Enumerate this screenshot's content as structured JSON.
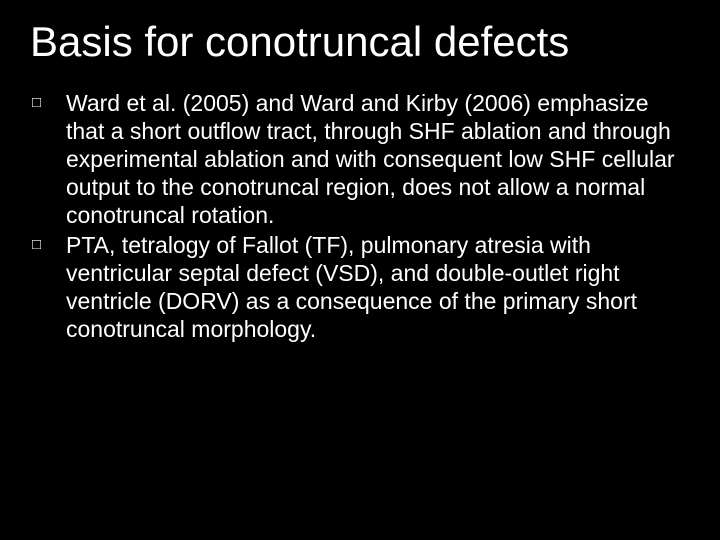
{
  "slide": {
    "title": "Basis for conotruncal defects",
    "bullets": [
      {
        "marker": "□",
        "text": "Ward et al. (2005) and Ward and Kirby (2006) emphasize that  a short outflow tract,  through SHF ablation and  through experimental ablation and with consequent low SHF cellular output to the conotruncal region, does not allow a normal conotruncal rotation."
      },
      {
        "marker": "□",
        "text": " PTA, tetralogy of Fallot (TF), pulmonary atresia with  ventricular septal defect (VSD), and double-outlet right  ventricle (DORV) as a consequence of the primary short conotruncal morphology."
      }
    ]
  },
  "style": {
    "background_color": "#000000",
    "text_color": "#ffffff",
    "title_fontsize": 42,
    "body_fontsize": 23,
    "font_family": "Arial"
  }
}
